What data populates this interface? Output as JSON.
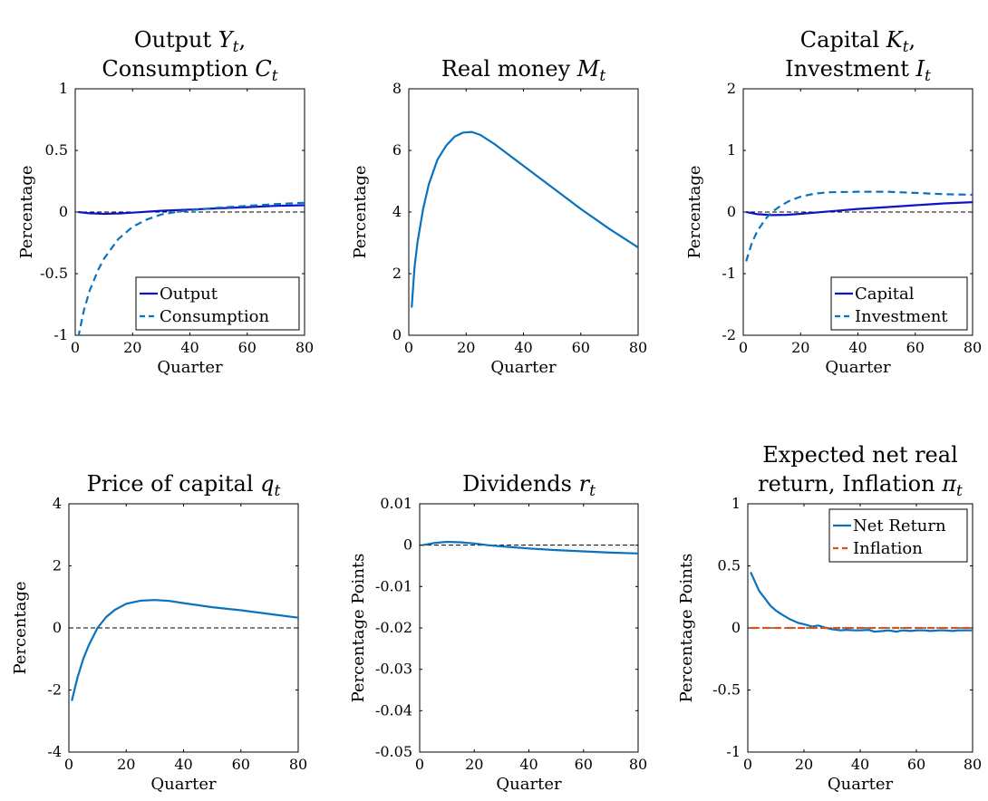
{
  "palette": {
    "output": "#0b14c8",
    "series_blue": "#0a72bd",
    "inflation": "#d95319",
    "zero_line": "#000000",
    "axes": "#000000"
  },
  "chart_data": [
    {
      "id": "output-consumption",
      "type": "line",
      "title": "Output Y_t, Consumption C_t",
      "title_lines": [
        [
          {
            "t": "Output "
          },
          {
            "t": "Y",
            "i": true
          },
          {
            "t": "t",
            "sub": true
          },
          {
            "t": ","
          }
        ],
        [
          {
            "t": "Consumption "
          },
          {
            "t": "C",
            "i": true
          },
          {
            "t": "t",
            "sub": true
          }
        ]
      ],
      "xlabel": "Quarter",
      "ylabel": "Percentage",
      "xlim": [
        0,
        80
      ],
      "ylim": [
        -1,
        1
      ],
      "xticks": [
        0,
        20,
        40,
        60,
        80
      ],
      "xtick_labels": [
        "0",
        "20",
        "40",
        "60",
        "80"
      ],
      "yticks": [
        -1,
        -0.5,
        0,
        0.5,
        1
      ],
      "ytick_labels": [
        "-1",
        "-0.5",
        "0",
        "0.5",
        "1"
      ],
      "zero_line": true,
      "legend": {
        "position": "bottom-right",
        "entries": [
          "Output",
          "Consumption"
        ]
      },
      "series": [
        {
          "name": "Output",
          "style": "solid",
          "color": "#0b14c8",
          "x": [
            1,
            5,
            10,
            15,
            20,
            30,
            40,
            50,
            60,
            70,
            80
          ],
          "y": [
            0.0,
            -0.01,
            -0.015,
            -0.012,
            -0.005,
            0.01,
            0.02,
            0.03,
            0.04,
            0.05,
            0.055
          ]
        },
        {
          "name": "Consumption",
          "style": "dashed",
          "color": "#0a72bd",
          "x": [
            1,
            3,
            5,
            8,
            10,
            15,
            20,
            25,
            30,
            35,
            40,
            50,
            60,
            70,
            80
          ],
          "y": [
            -1.02,
            -0.8,
            -0.64,
            -0.47,
            -0.38,
            -0.22,
            -0.12,
            -0.06,
            -0.02,
            0.0,
            0.015,
            0.035,
            0.05,
            0.065,
            0.075
          ]
        }
      ]
    },
    {
      "id": "real-money",
      "type": "line",
      "title": "Real money M_t",
      "title_lines": [
        [
          {
            "t": "Real money "
          },
          {
            "t": "M",
            "i": true
          },
          {
            "t": "t",
            "sub": true
          }
        ]
      ],
      "xlabel": "Quarter",
      "ylabel": "Percentage",
      "xlim": [
        0,
        80
      ],
      "ylim": [
        0,
        8
      ],
      "xticks": [
        0,
        20,
        40,
        60,
        80
      ],
      "xtick_labels": [
        "0",
        "20",
        "40",
        "60",
        "80"
      ],
      "yticks": [
        0,
        2,
        4,
        6,
        8
      ],
      "ytick_labels": [
        "0",
        "2",
        "4",
        "6",
        "8"
      ],
      "zero_line": true,
      "series": [
        {
          "name": "",
          "style": "solid",
          "color": "#0a72bd",
          "x": [
            1,
            2,
            3,
            5,
            7,
            10,
            13,
            16,
            19,
            22,
            25,
            30,
            35,
            40,
            50,
            60,
            70,
            80
          ],
          "y": [
            0.9,
            2.2,
            3.0,
            4.1,
            4.9,
            5.7,
            6.15,
            6.45,
            6.58,
            6.6,
            6.5,
            6.2,
            5.85,
            5.5,
            4.8,
            4.1,
            3.45,
            2.85
          ]
        }
      ]
    },
    {
      "id": "capital-investment",
      "type": "line",
      "title": "Capital K_t, Investment I_t",
      "title_lines": [
        [
          {
            "t": "Capital "
          },
          {
            "t": "K",
            "i": true
          },
          {
            "t": "t",
            "sub": true
          },
          {
            "t": ","
          }
        ],
        [
          {
            "t": "Investment "
          },
          {
            "t": "I",
            "i": true
          },
          {
            "t": "t",
            "sub": true
          }
        ]
      ],
      "xlabel": "Quarter",
      "ylabel": "Percentage",
      "xlim": [
        0,
        80
      ],
      "ylim": [
        -2,
        2
      ],
      "xticks": [
        0,
        20,
        40,
        60,
        80
      ],
      "xtick_labels": [
        "0",
        "20",
        "40",
        "60",
        "80"
      ],
      "yticks": [
        -2,
        -1,
        0,
        1,
        2
      ],
      "ytick_labels": [
        "-2",
        "-1",
        "0",
        "1",
        "2"
      ],
      "zero_line": true,
      "legend": {
        "position": "bottom-right",
        "entries": [
          "Capital",
          "Investment"
        ]
      },
      "series": [
        {
          "name": "Capital",
          "style": "solid",
          "color": "#0b14c8",
          "x": [
            1,
            5,
            10,
            15,
            20,
            30,
            40,
            50,
            60,
            70,
            80
          ],
          "y": [
            0.0,
            -0.035,
            -0.05,
            -0.045,
            -0.03,
            0.01,
            0.05,
            0.08,
            0.11,
            0.14,
            0.16
          ]
        },
        {
          "name": "Investment",
          "style": "dashed",
          "color": "#0a72bd",
          "x": [
            1,
            3,
            5,
            8,
            10,
            13,
            16,
            20,
            25,
            30,
            40,
            50,
            60,
            70,
            80
          ],
          "y": [
            -0.8,
            -0.5,
            -0.3,
            -0.1,
            0.0,
            0.1,
            0.18,
            0.25,
            0.3,
            0.32,
            0.33,
            0.33,
            0.31,
            0.29,
            0.28
          ]
        }
      ]
    },
    {
      "id": "price-of-capital",
      "type": "line",
      "title": "Price of capital q_t",
      "title_lines": [
        [
          {
            "t": "Price of capital "
          },
          {
            "t": "q",
            "i": true
          },
          {
            "t": "t",
            "sub": true
          }
        ]
      ],
      "xlabel": "Quarter",
      "ylabel": "Percentage",
      "xlim": [
        0,
        80
      ],
      "ylim": [
        -4,
        4
      ],
      "xticks": [
        0,
        20,
        40,
        60,
        80
      ],
      "xtick_labels": [
        "0",
        "20",
        "40",
        "60",
        "80"
      ],
      "yticks": [
        -4,
        -2,
        0,
        2,
        4
      ],
      "ytick_labels": [
        "-4",
        "-2",
        "0",
        "2",
        "4"
      ],
      "zero_line": true,
      "series": [
        {
          "name": "",
          "style": "solid",
          "color": "#0a72bd",
          "x": [
            1,
            3,
            5,
            7,
            10,
            13,
            16,
            20,
            25,
            30,
            35,
            40,
            50,
            60,
            70,
            80
          ],
          "y": [
            -2.35,
            -1.6,
            -1.0,
            -0.55,
            0.0,
            0.35,
            0.58,
            0.78,
            0.88,
            0.9,
            0.87,
            0.8,
            0.67,
            0.57,
            0.45,
            0.33
          ]
        }
      ]
    },
    {
      "id": "dividends",
      "type": "line",
      "title": "Dividends r_t",
      "title_lines": [
        [
          {
            "t": "Dividends "
          },
          {
            "t": "r",
            "i": true
          },
          {
            "t": "t",
            "sub": true
          }
        ]
      ],
      "xlabel": "Quarter",
      "ylabel": "Percentage Points",
      "xlim": [
        0,
        80
      ],
      "ylim": [
        -0.05,
        0.01
      ],
      "xticks": [
        0,
        20,
        40,
        60,
        80
      ],
      "xtick_labels": [
        "0",
        "20",
        "40",
        "60",
        "80"
      ],
      "yticks": [
        -0.05,
        -0.04,
        -0.03,
        -0.02,
        -0.01,
        0,
        0.01
      ],
      "ytick_labels": [
        "-0.05",
        "-0.04",
        "-0.03",
        "-0.02",
        "-0.01",
        "0",
        "0.01"
      ],
      "zero_line": true,
      "series": [
        {
          "name": "",
          "style": "solid",
          "color": "#0a72bd",
          "x": [
            1,
            5,
            10,
            15,
            20,
            25,
            30,
            40,
            50,
            60,
            70,
            80
          ],
          "y": [
            0.0,
            0.0005,
            0.0008,
            0.0007,
            0.0004,
            0.0,
            -0.0003,
            -0.0008,
            -0.0012,
            -0.0015,
            -0.0018,
            -0.002
          ]
        }
      ]
    },
    {
      "id": "net-return-inflation",
      "type": "line",
      "title": "Expected net real return, Inflation π_t",
      "title_lines": [
        [
          {
            "t": "Expected net real"
          }
        ],
        [
          {
            "t": "return, Inflation "
          },
          {
            "t": "π",
            "i": true
          },
          {
            "t": "t",
            "sub": true
          }
        ]
      ],
      "xlabel": "Quarter",
      "ylabel": "Percentage Points",
      "xlim": [
        0,
        80
      ],
      "ylim": [
        -1,
        1
      ],
      "xticks": [
        0,
        20,
        40,
        60,
        80
      ],
      "xtick_labels": [
        "0",
        "20",
        "40",
        "60",
        "80"
      ],
      "yticks": [
        -1,
        -0.5,
        0,
        0.5,
        1
      ],
      "ytick_labels": [
        "-1",
        "-0.5",
        "0",
        "0.5",
        "1"
      ],
      "zero_line": true,
      "legend": {
        "position": "top-right",
        "entries": [
          "Net Return",
          "Inflation"
        ]
      },
      "series": [
        {
          "name": "Net Return",
          "style": "solid",
          "color": "#0a72bd",
          "x": [
            1,
            2,
            4,
            6,
            8,
            10,
            12,
            15,
            18,
            20,
            23,
            25,
            28,
            30,
            33,
            35,
            38,
            40,
            43,
            45,
            48,
            50,
            53,
            55,
            58,
            60,
            63,
            65,
            68,
            70,
            73,
            75,
            78,
            80
          ],
          "y": [
            0.45,
            0.4,
            0.3,
            0.24,
            0.18,
            0.14,
            0.11,
            0.07,
            0.04,
            0.03,
            0.01,
            0.02,
            0.0,
            -0.01,
            -0.02,
            -0.015,
            -0.02,
            -0.02,
            -0.015,
            -0.03,
            -0.025,
            -0.02,
            -0.03,
            -0.02,
            -0.025,
            -0.02,
            -0.02,
            -0.025,
            -0.02,
            -0.02,
            -0.025,
            -0.02,
            -0.02,
            -0.02
          ]
        },
        {
          "name": "Inflation",
          "style": "dashed",
          "color": "#d95319",
          "x": [
            1,
            80
          ],
          "y": [
            0.0,
            0.0
          ]
        }
      ]
    }
  ]
}
